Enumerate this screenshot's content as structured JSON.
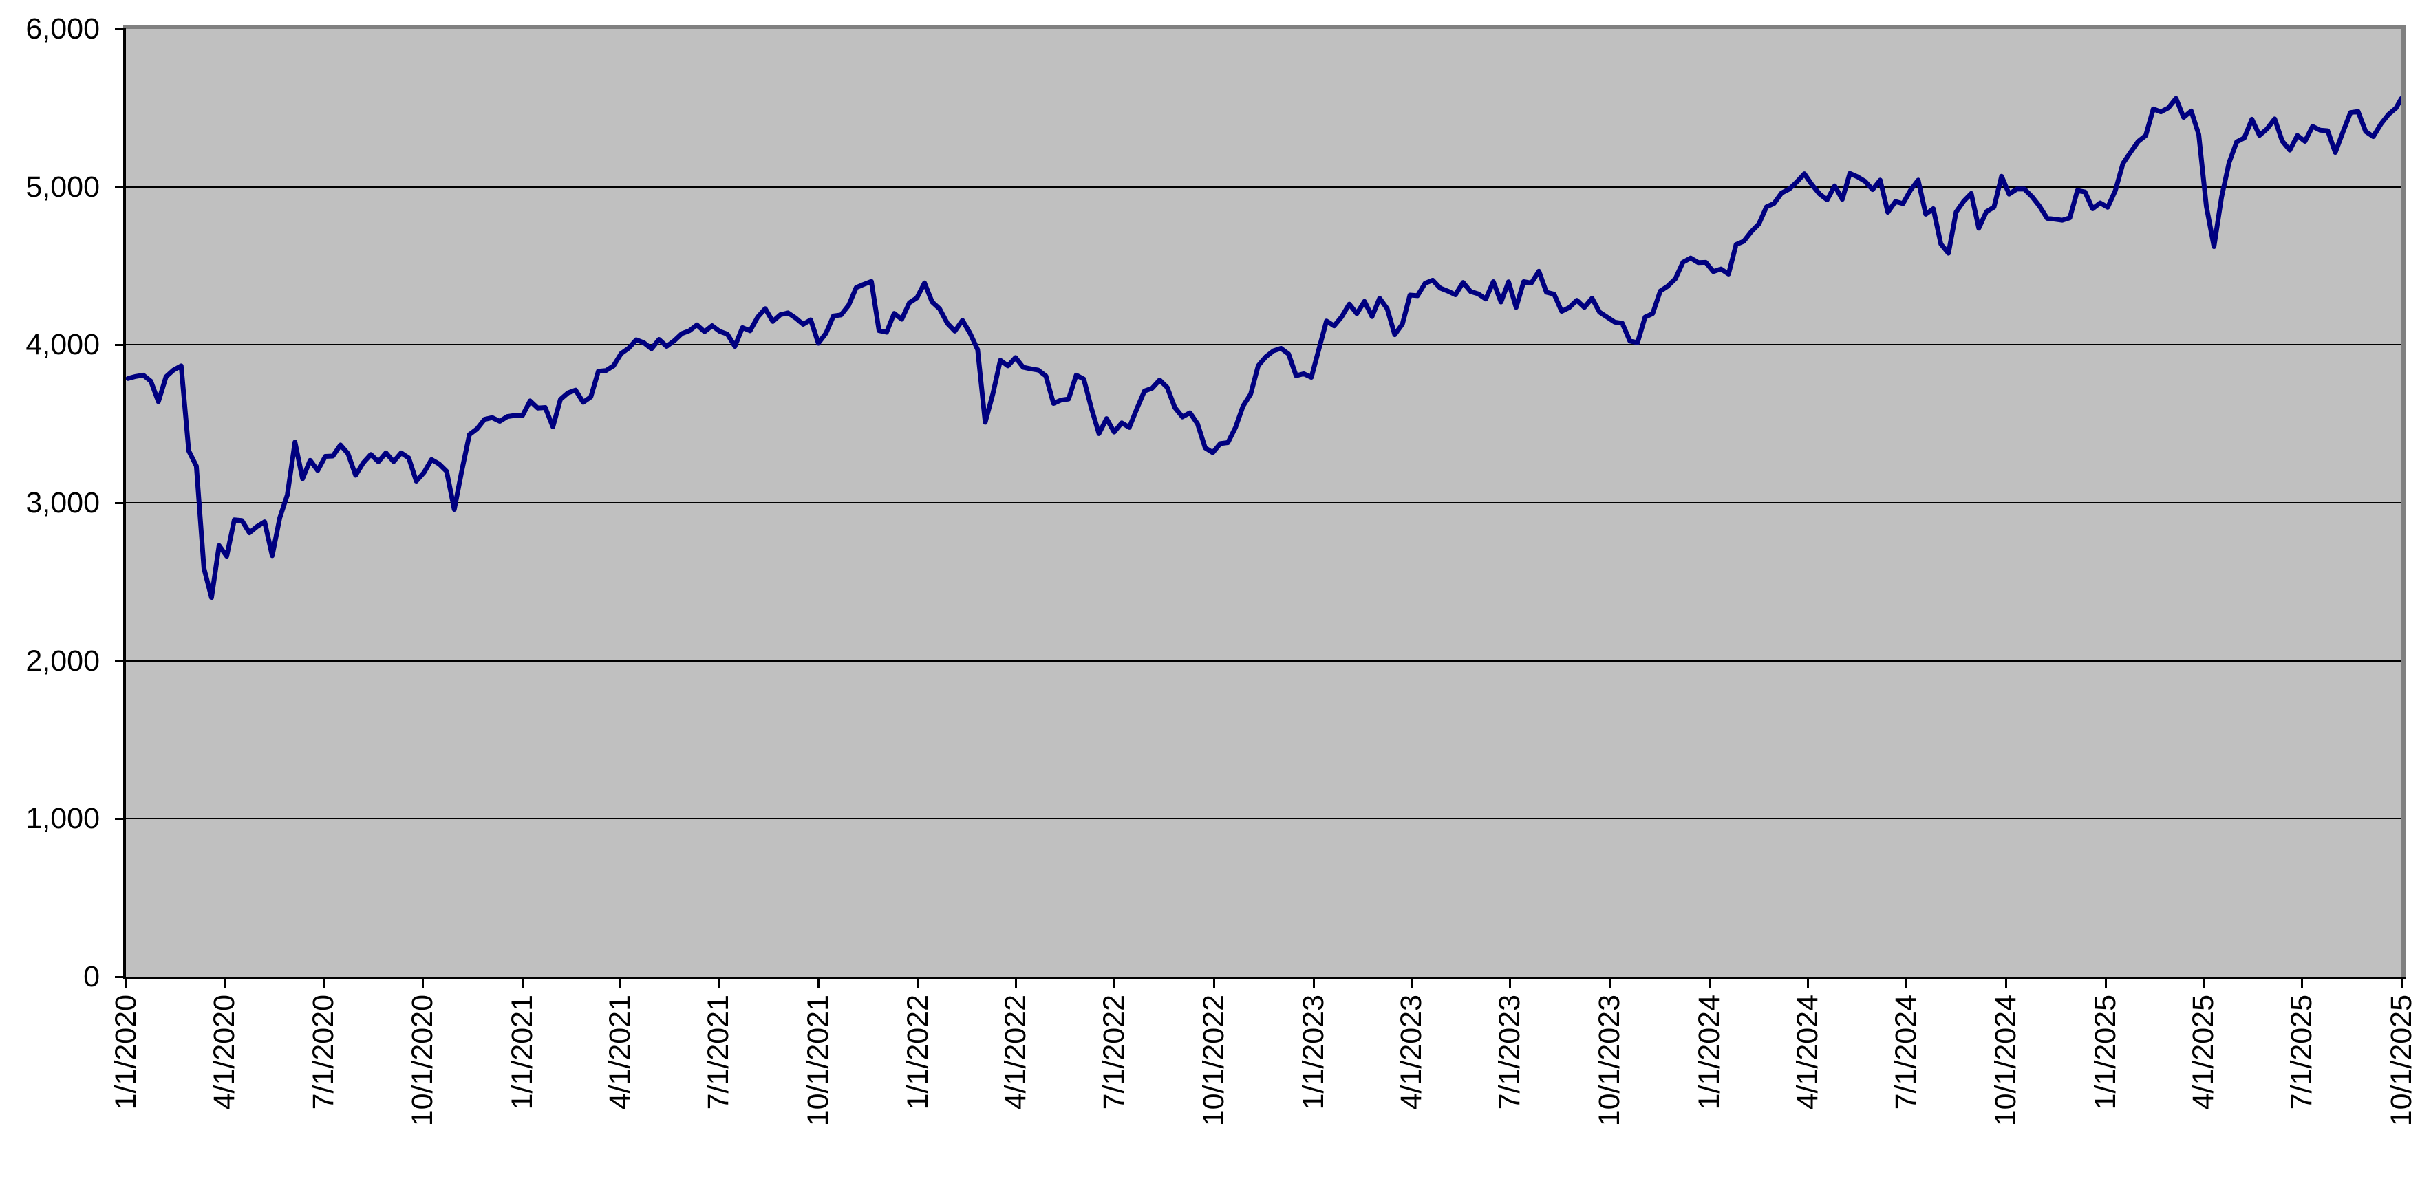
{
  "chart_data": {
    "type": "line",
    "title": "",
    "xlabel": "",
    "ylabel": "",
    "legend": "none",
    "grid": "horizontal",
    "plot_background": "#C0C0C0",
    "gridline_color": "#000000",
    "axis_color": "#000000",
    "plot_border_color": "#808080",
    "y_axis": {
      "min": 0,
      "max": 6000,
      "tick_interval": 1000,
      "tick_labels": [
        "0",
        "1,000",
        "2,000",
        "3,000",
        "4,000",
        "5,000",
        "6,000"
      ]
    },
    "x_axis": {
      "tick_labels": [
        "1/1/2020",
        "4/1/2020",
        "7/1/2020",
        "10/1/2020",
        "1/1/2021",
        "4/1/2021",
        "7/1/2021",
        "10/1/2021",
        "1/1/2022",
        "4/1/2022",
        "7/1/2022",
        "10/1/2022",
        "1/1/2023",
        "4/1/2023",
        "7/1/2023",
        "10/1/2023",
        "1/1/2024",
        "4/1/2024",
        "7/1/2024",
        "10/1/2024",
        "1/1/2025",
        "4/1/2025",
        "7/1/2025",
        "10/1/2025"
      ]
    },
    "series": [
      {
        "name": "",
        "color": "#000080",
        "start_date": "2020-01-03",
        "interval_days": 7,
        "values": [
          3787,
          3800,
          3808,
          3770,
          3640,
          3798,
          3841,
          3867,
          3329,
          3232,
          2586,
          2400,
          2730,
          2662,
          2892,
          2888,
          2810,
          2850,
          2880,
          2665,
          2905,
          3050,
          3384,
          3153,
          3269,
          3204,
          3294,
          3296,
          3366,
          3311,
          3174,
          3253,
          3306,
          3260,
          3316,
          3261,
          3316,
          3284,
          3137,
          3191,
          3274,
          3246,
          3199,
          2958,
          3204,
          3432,
          3468,
          3528,
          3539,
          3516,
          3546,
          3553,
          3553,
          3645,
          3600,
          3603,
          3481,
          3655,
          3696,
          3713,
          3636,
          3670,
          3833,
          3837,
          3867,
          3945,
          3979,
          4032,
          4013,
          3975,
          4034,
          3990,
          4026,
          4071,
          4089,
          4126,
          4083,
          4121,
          4085,
          4068,
          3990,
          4109,
          4089,
          4175,
          4229,
          4148,
          4191,
          4202,
          4170,
          4130,
          4158,
          4010,
          4073,
          4183,
          4189,
          4251,
          4363,
          4383,
          4401,
          4090,
          4080,
          4199,
          4162,
          4266,
          4298,
          4392,
          4272,
          4228,
          4137,
          4087,
          4155,
          4074,
          3970,
          3510,
          3687,
          3902,
          3867,
          3919,
          3858,
          3848,
          3840,
          3803,
          3629,
          3650,
          3657,
          3808,
          3783,
          3599,
          3438,
          3533,
          3448,
          3506,
          3477,
          3596,
          3708,
          3725,
          3777,
          3730,
          3603,
          3544,
          3570,
          3500,
          3348,
          3318,
          3375,
          3381,
          3477,
          3613,
          3688,
          3868,
          3924,
          3962,
          3978,
          3942,
          3804,
          3817,
          3794,
          3973,
          4151,
          4120,
          4178,
          4258,
          4198,
          4275,
          4179,
          4295,
          4229,
          4064,
          4131,
          4315,
          4311,
          4390,
          4409,
          4359,
          4340,
          4317,
          4395,
          4337,
          4323,
          4290,
          4400,
          4271,
          4399,
          4237,
          4400,
          4391,
          4466,
          4333,
          4321,
          4212,
          4236,
          4282,
          4237,
          4295,
          4207,
          4175,
          4144,
          4136,
          4024,
          4014,
          4175,
          4198,
          4340,
          4372,
          4419,
          4523,
          4549,
          4521,
          4522,
          4464,
          4480,
          4448,
          4635,
          4655,
          4716,
          4765,
          4873,
          4895,
          4961,
          4986,
          5031,
          5083,
          5014,
          4955,
          4918,
          5006,
          4921,
          5085,
          5064,
          5035,
          4983,
          5043,
          4839,
          4907,
          4894,
          4979,
          5043,
          4827,
          4862,
          4638,
          4580,
          4840,
          4909,
          4958,
          4738,
          4843,
          4872,
          5067,
          4954,
          4986,
          4986,
          4939,
          4878,
          4801,
          4795,
          4789,
          4804,
          4977,
          4967,
          4862,
          4898,
          4871,
          4977,
          5148,
          5219,
          5287,
          5325,
          5493,
          5475,
          5500,
          5560,
          5440,
          5480,
          5331,
          4878,
          4622,
          4935,
          5154,
          5285,
          5310,
          5428,
          5326,
          5367,
          5430,
          5290,
          5233,
          5325,
          5288,
          5383,
          5359,
          5355,
          5218,
          5347,
          5470,
          5477,
          5351,
          5318,
          5397,
          5458,
          5499,
          5560
        ]
      }
    ]
  }
}
